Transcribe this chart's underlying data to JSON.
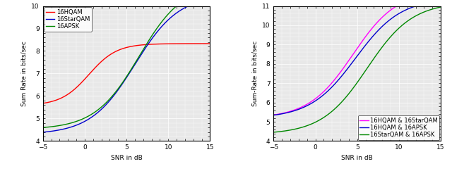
{
  "snr_range": [
    -5,
    15
  ],
  "snr_points": 300,
  "plot1": {
    "ylabel": "Sum Rate in bits/sec",
    "xlabel": "SNR in dB",
    "xlim": [
      -5,
      15
    ],
    "ylim": [
      4,
      10
    ],
    "yticks": [
      4,
      5,
      6,
      7,
      8,
      9,
      10
    ],
    "xticks": [
      -5,
      0,
      5,
      10,
      15
    ],
    "lines": [
      {
        "label": "16HQAM",
        "color": "#ff0000"
      },
      {
        "label": "16StarQAM",
        "color": "#0000cc"
      },
      {
        "label": "16APSK",
        "color": "#008800"
      }
    ]
  },
  "plot2": {
    "ylabel": "Sum-Rate in bits/sec",
    "xlabel": "SNR in dB",
    "xlim": [
      -5,
      15
    ],
    "ylim": [
      4,
      11
    ],
    "yticks": [
      4,
      5,
      6,
      7,
      8,
      9,
      10,
      11
    ],
    "xticks": [
      -5,
      0,
      5,
      10,
      15
    ],
    "lines": [
      {
        "label": "16HQAM & 16StarQAM",
        "color": "#ff00ff"
      },
      {
        "label": "16HQAM & 16APSK",
        "color": "#0000cc"
      },
      {
        "label": "16StarQAM & 16APSK",
        "color": "#008800"
      }
    ]
  },
  "bg_color": "#e8e8e8",
  "grid_color": "#ffffff",
  "font_size": 6.5
}
